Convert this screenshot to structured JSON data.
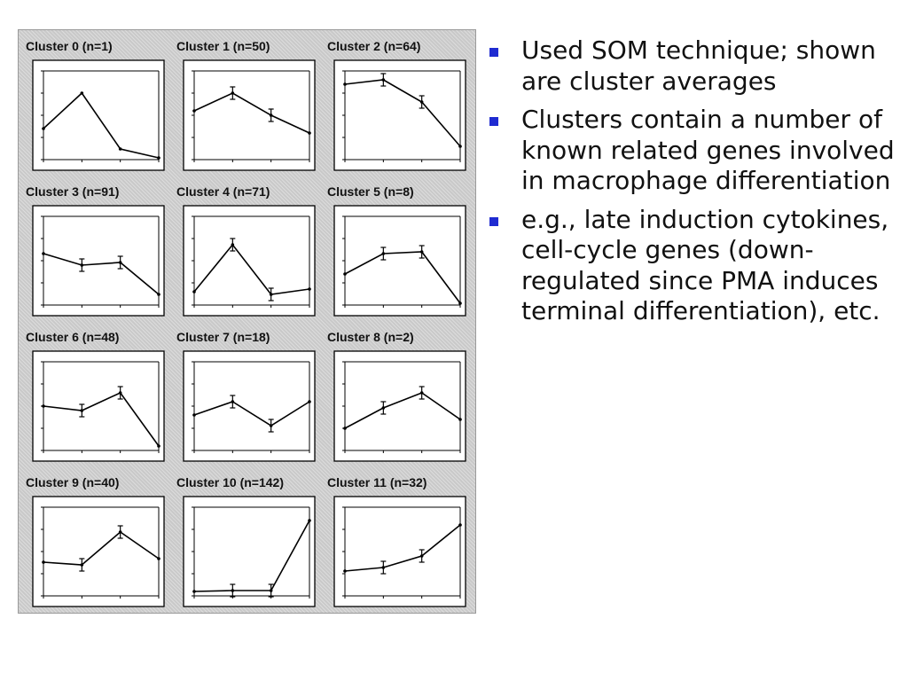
{
  "slide": {
    "bullets": [
      {
        "text": "Used SOM technique; shown are cluster averages"
      },
      {
        "text": "Clusters contain a number of known related genes involved in macrophage differentiation"
      },
      {
        "text": "e.g., late induction cytokines, cell-cycle genes (down-regulated since PMA induces terminal differentiation), etc."
      }
    ],
    "bullet_color": "#1f2bd1"
  },
  "chart_data": [
    {
      "type": "line",
      "title": "Cluster 0 (n=1)",
      "x": [
        0,
        1,
        2,
        3
      ],
      "values": [
        0.35,
        0.75,
        0.12,
        0.02
      ],
      "error_bars": [
        false,
        false,
        false,
        false
      ],
      "ylim": [
        0,
        1
      ]
    },
    {
      "type": "line",
      "title": "Cluster 1 (n=50)",
      "x": [
        0,
        1,
        2,
        3
      ],
      "values": [
        0.55,
        0.75,
        0.5,
        0.3
      ],
      "error_bars": [
        false,
        true,
        true,
        false
      ],
      "ylim": [
        0,
        1
      ]
    },
    {
      "type": "line",
      "title": "Cluster 2 (n=64)",
      "x": [
        0,
        1,
        2,
        3
      ],
      "values": [
        0.85,
        0.9,
        0.65,
        0.15
      ],
      "error_bars": [
        false,
        true,
        true,
        false
      ],
      "ylim": [
        0,
        1
      ]
    },
    {
      "type": "line",
      "title": "Cluster 3 (n=91)",
      "x": [
        0,
        1,
        2,
        3
      ],
      "values": [
        0.58,
        0.45,
        0.48,
        0.12
      ],
      "error_bars": [
        false,
        true,
        true,
        false
      ],
      "ylim": [
        0,
        1
      ]
    },
    {
      "type": "line",
      "title": "Cluster 4 (n=71)",
      "x": [
        0,
        1,
        2,
        3
      ],
      "values": [
        0.15,
        0.68,
        0.12,
        0.18
      ],
      "error_bars": [
        false,
        true,
        true,
        false
      ],
      "ylim": [
        0,
        1
      ]
    },
    {
      "type": "line",
      "title": "Cluster 5 (n=8)",
      "x": [
        0,
        1,
        2,
        3
      ],
      "values": [
        0.35,
        0.58,
        0.6,
        0.02
      ],
      "error_bars": [
        false,
        true,
        true,
        false
      ],
      "ylim": [
        0,
        1
      ]
    },
    {
      "type": "line",
      "title": "Cluster 6 (n=48)",
      "x": [
        0,
        1,
        2,
        3
      ],
      "values": [
        0.5,
        0.45,
        0.65,
        0.05
      ],
      "error_bars": [
        false,
        true,
        true,
        false
      ],
      "ylim": [
        0,
        1
      ]
    },
    {
      "type": "line",
      "title": "Cluster 7 (n=18)",
      "x": [
        0,
        1,
        2,
        3
      ],
      "values": [
        0.4,
        0.55,
        0.28,
        0.55
      ],
      "error_bars": [
        false,
        true,
        true,
        false
      ],
      "ylim": [
        0,
        1
      ]
    },
    {
      "type": "line",
      "title": "Cluster 8 (n=2)",
      "x": [
        0,
        1,
        2,
        3
      ],
      "values": [
        0.25,
        0.48,
        0.65,
        0.35
      ],
      "error_bars": [
        false,
        true,
        true,
        false
      ],
      "ylim": [
        0,
        1
      ]
    },
    {
      "type": "line",
      "title": "Cluster 9 (n=40)",
      "x": [
        0,
        1,
        2,
        3
      ],
      "values": [
        0.38,
        0.35,
        0.72,
        0.42
      ],
      "error_bars": [
        false,
        true,
        true,
        false
      ],
      "ylim": [
        0,
        1
      ]
    },
    {
      "type": "line",
      "title": "Cluster 10 (n=142)",
      "x": [
        0,
        1,
        2,
        3
      ],
      "values": [
        0.05,
        0.06,
        0.06,
        0.85
      ],
      "error_bars": [
        false,
        true,
        true,
        false
      ],
      "ylim": [
        0,
        1
      ]
    },
    {
      "type": "line",
      "title": "Cluster 11 (n=32)",
      "x": [
        0,
        1,
        2,
        3
      ],
      "values": [
        0.28,
        0.32,
        0.45,
        0.8
      ],
      "error_bars": [
        false,
        true,
        true,
        false
      ],
      "ylim": [
        0,
        1
      ]
    }
  ]
}
